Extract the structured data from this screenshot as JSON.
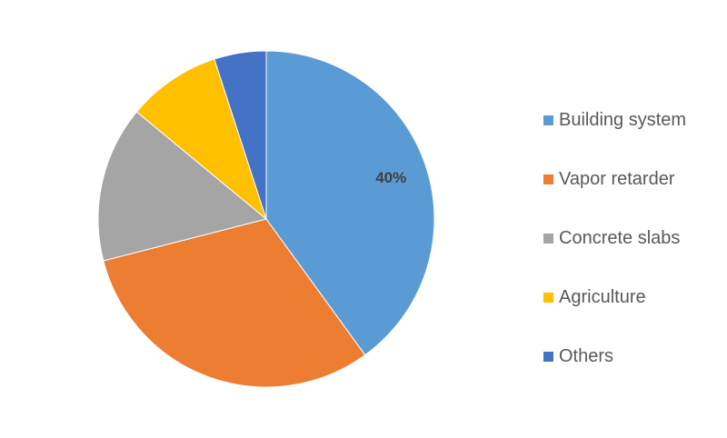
{
  "chart_data": {
    "type": "pie",
    "title": "",
    "categories": [
      "Building system",
      "Vapor retarder",
      "Concrete slabs",
      "Agriculture",
      "Others"
    ],
    "values": [
      40,
      31,
      15,
      9,
      5
    ],
    "colors": [
      "#5B9BD5",
      "#ED7D31",
      "#A5A5A5",
      "#FFC000",
      "#4472C4"
    ],
    "data_labels": [
      "40%",
      "",
      "",
      "",
      ""
    ],
    "start_angle_deg": 0,
    "direction": "clockwise",
    "legend_position": "right"
  }
}
